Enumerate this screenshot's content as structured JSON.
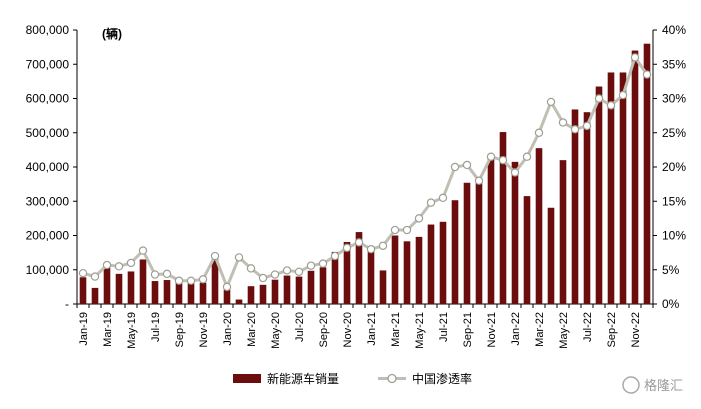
{
  "chart_data": {
    "type": "bar+line",
    "unit_label": "(辆)",
    "categories": [
      "Jan-19",
      "Feb-19",
      "Mar-19",
      "Apr-19",
      "May-19",
      "Jun-19",
      "Jul-19",
      "Aug-19",
      "Sep-19",
      "Oct-19",
      "Nov-19",
      "Dec-19",
      "Jan-20",
      "Feb-20",
      "Mar-20",
      "Apr-20",
      "May-20",
      "Jun-20",
      "Jul-20",
      "Aug-20",
      "Sep-20",
      "Oct-20",
      "Nov-20",
      "Dec-20",
      "Jan-21",
      "Feb-21",
      "Mar-21",
      "Apr-21",
      "May-21",
      "Jun-21",
      "Jul-21",
      "Aug-21",
      "Sep-21",
      "Oct-21",
      "Nov-21",
      "Dec-21",
      "Jan-22",
      "Feb-22",
      "Mar-22",
      "Apr-22",
      "May-22",
      "Jun-22",
      "Jul-22",
      "Aug-22",
      "Sep-22",
      "Oct-22",
      "Nov-22",
      "Dec-22"
    ],
    "x_tick_labels": [
      "Jan-19",
      "Mar-19",
      "May-19",
      "Jul-19",
      "Sep-19",
      "Nov-19",
      "Jan-20",
      "Mar-20",
      "May-20",
      "Jul-20",
      "Sep-20",
      "Nov-20",
      "Jan-21",
      "Mar-21",
      "May-21",
      "Jul-21",
      "Sep-21",
      "Nov-21",
      "Jan-22",
      "Mar-22",
      "May-22",
      "Jul-22",
      "Sep-22",
      "Nov-22"
    ],
    "y_left": {
      "min": 0,
      "max": 800000,
      "ticks": [
        "-",
        "100,000",
        "200,000",
        "300,000",
        "400,000",
        "500,000",
        "600,000",
        "700,000",
        "800,000"
      ]
    },
    "y_right": {
      "min": 0,
      "max": 40,
      "ticks": [
        "0%",
        "5%",
        "10%",
        "15%",
        "20%",
        "25%",
        "30%",
        "35%",
        "40%"
      ]
    },
    "series": [
      {
        "name": "新能源车销量",
        "kind": "bar",
        "color": "#6b0d0d",
        "values": [
          78000,
          47000,
          110000,
          88000,
          95000,
          130000,
          67000,
          70000,
          63000,
          60000,
          62000,
          131000,
          41000,
          13000,
          52000,
          56000,
          71000,
          83000,
          80000,
          97000,
          107000,
          152000,
          181000,
          210000,
          162000,
          98000,
          200000,
          183000,
          196000,
          232000,
          240000,
          303000,
          354000,
          358000,
          427000,
          502000,
          415000,
          315000,
          455000,
          281000,
          420000,
          568000,
          560000,
          635000,
          676000,
          676000,
          740000,
          760000
        ]
      },
      {
        "name": "中国渗透率",
        "kind": "line",
        "color": "#bfbfb4",
        "values": [
          4.5,
          4.0,
          5.7,
          5.5,
          6.0,
          7.8,
          4.3,
          4.4,
          3.4,
          3.4,
          3.6,
          7.0,
          2.5,
          6.8,
          5.2,
          3.8,
          4.3,
          4.9,
          4.7,
          5.6,
          5.9,
          7.0,
          8.2,
          9.0,
          8.0,
          8.5,
          10.8,
          10.8,
          12.5,
          14.8,
          15.5,
          20.0,
          20.3,
          18.0,
          21.5,
          21.0,
          19.2,
          21.5,
          25.0,
          29.5,
          26.5,
          25.5,
          26.0,
          30.0,
          29.0,
          30.5,
          36.0,
          33.5
        ]
      }
    ],
    "legend_position": "bottom-center",
    "grid": false
  },
  "watermark": {
    "text": "格隆汇"
  }
}
